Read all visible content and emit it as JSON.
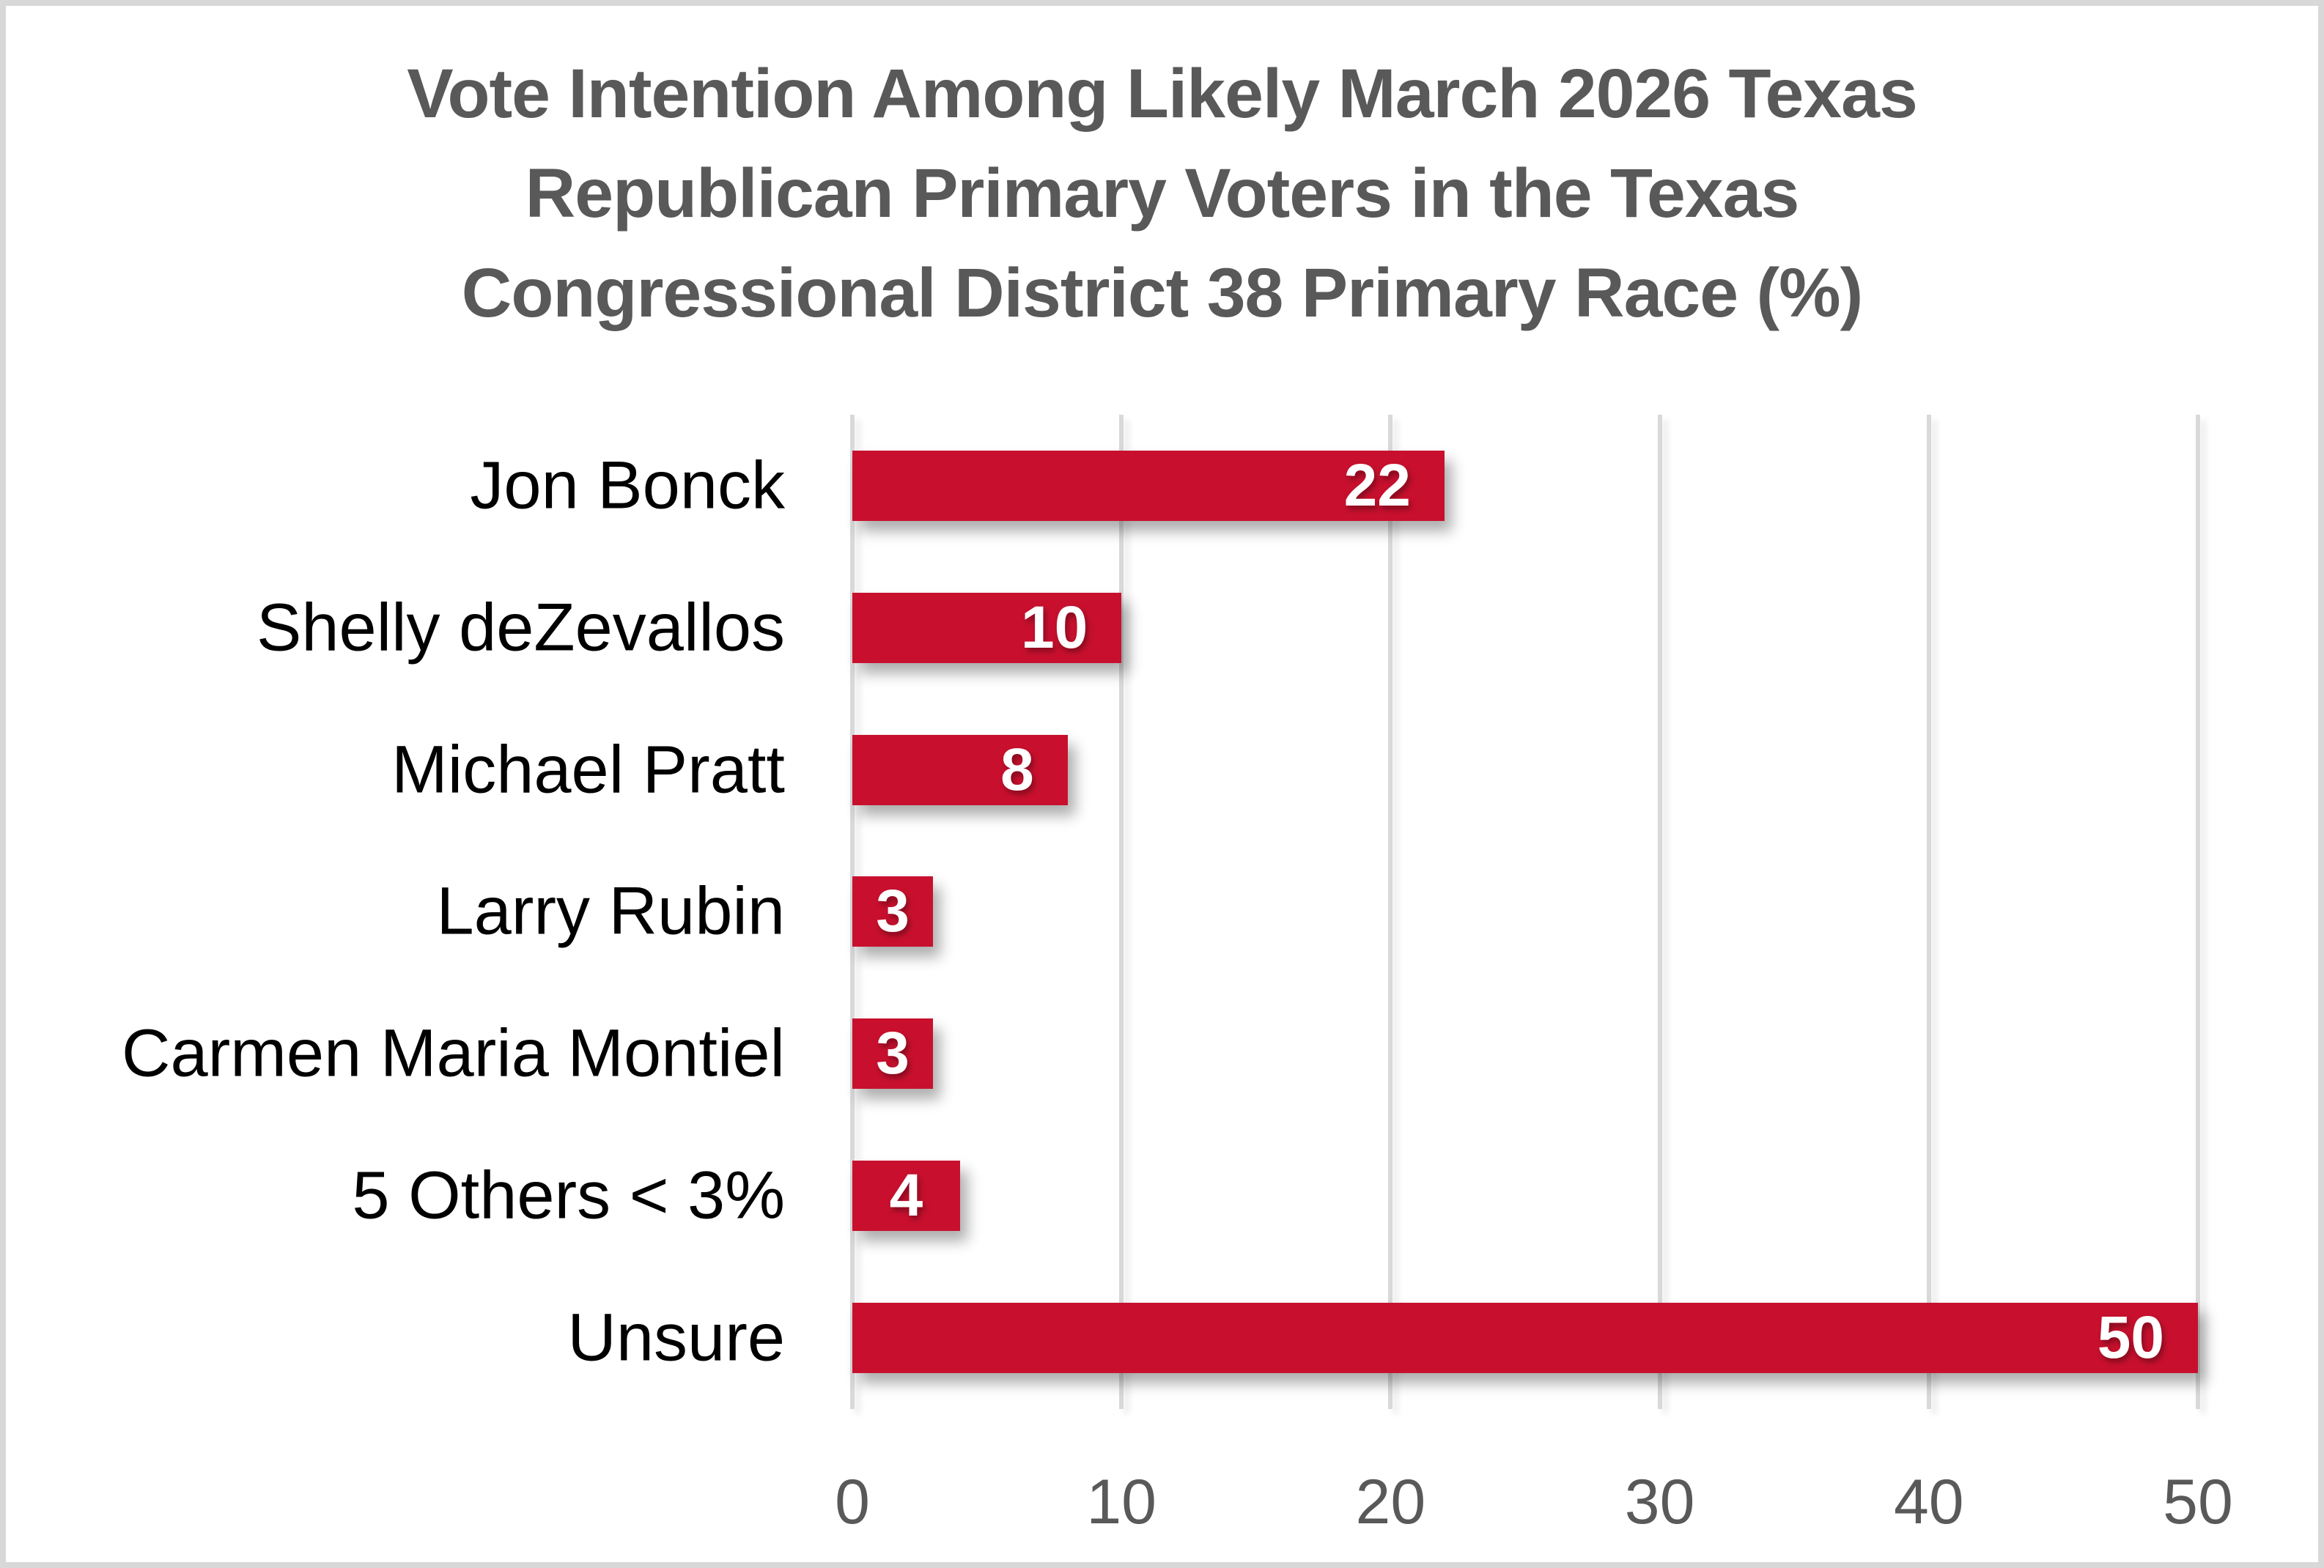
{
  "chart_data": {
    "type": "bar",
    "orientation": "horizontal",
    "title": "Vote Intention Among Likely March 2026 Texas Republican Primary Voters in the Texas Congressional District 38 Primary Race (%)",
    "title_lines": [
      "Vote Intention Among Likely March 2026 Texas",
      "Republican Primary Voters in the Texas",
      "Congressional District 38 Primary Race (%)"
    ],
    "categories": [
      "Jon Bonck",
      "Shelly deZevallos",
      "Michael Pratt",
      "Larry Rubin",
      "Carmen Maria Montiel",
      "5 Others < 3%",
      "Unsure"
    ],
    "values": [
      22,
      10,
      8,
      3,
      3,
      4,
      50
    ],
    "xlabel": "",
    "ylabel": "",
    "xlim": [
      0,
      50
    ],
    "xticks": [
      0,
      10,
      20,
      30,
      40,
      50
    ],
    "grid": true,
    "legend": "none",
    "value_label_position": "inside-end"
  },
  "colors": {
    "bar": "#C8102E",
    "title": "#595959",
    "tick": "#595959",
    "category_label": "#000000",
    "value_label": "#FFFFFF",
    "gridline": "#D9D9D9",
    "frame_border": "#D8D8D8",
    "background": "#FFFFFF"
  }
}
